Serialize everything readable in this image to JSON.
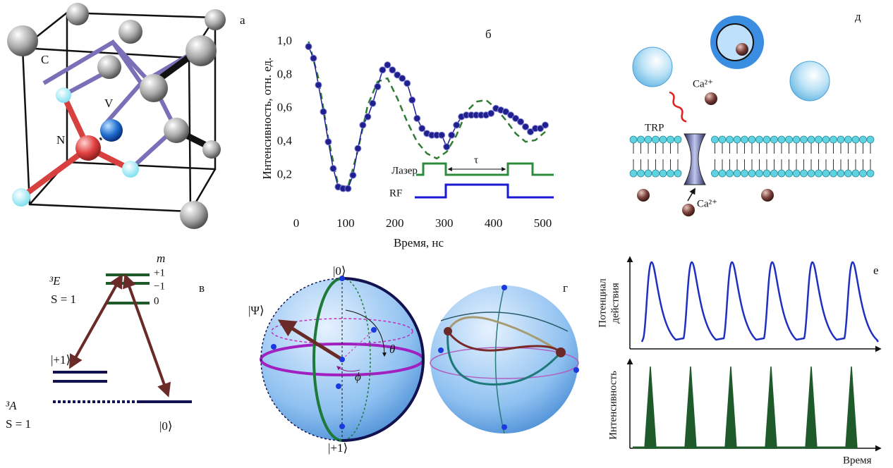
{
  "panel_labels": {
    "a": "а",
    "b": "б",
    "v": "в",
    "g": "г",
    "d": "д",
    "e": "е"
  },
  "lattice": {
    "carbon": "C",
    "vacancy": "V",
    "nitrogen": "N"
  },
  "chart_data": {
    "type": "line",
    "x_label": "Время, нс",
    "y_label": "Интенсивность, отн. ед.",
    "xlim": [
      0,
      525
    ],
    "ylim": [
      0,
      1.08
    ],
    "xticks": [
      0,
      100,
      200,
      300,
      400,
      500
    ],
    "yticks": [
      {
        "value": 0.2,
        "label": "0,2"
      },
      {
        "value": 0.4,
        "label": "0,4"
      },
      {
        "value": 0.6,
        "label": "0,6"
      },
      {
        "value": 0.8,
        "label": "0,8"
      },
      {
        "value": 1.0,
        "label": "1,0"
      }
    ],
    "series": [
      {
        "color": "#1f1f8f",
        "marker": "circle",
        "x": [
          25,
          35,
          45,
          55,
          65,
          75,
          85,
          95,
          105,
          115,
          125,
          135,
          145,
          155,
          165,
          175,
          185,
          195,
          205,
          215,
          225,
          235,
          245,
          255,
          265,
          275,
          285,
          295,
          305,
          315,
          325,
          335,
          345,
          355,
          365,
          375,
          385,
          395,
          405,
          415,
          425,
          435,
          445,
          455,
          465,
          475,
          485,
          495,
          505
        ],
        "values": [
          0.97,
          0.9,
          0.74,
          0.58,
          0.4,
          0.24,
          0.13,
          0.12,
          0.12,
          0.2,
          0.36,
          0.5,
          0.55,
          0.63,
          0.73,
          0.83,
          0.86,
          0.83,
          0.8,
          0.78,
          0.75,
          0.65,
          0.54,
          0.48,
          0.45,
          0.44,
          0.44,
          0.44,
          0.37,
          0.44,
          0.5,
          0.55,
          0.56,
          0.56,
          0.56,
          0.56,
          0.56,
          0.57,
          0.6,
          0.59,
          0.58,
          0.56,
          0.54,
          0.52,
          0.49,
          0.46,
          0.48,
          0.48,
          0.5
        ]
      },
      {
        "color": "#2e7d32",
        "dashed": true,
        "x": [
          25,
          45,
          65,
          85,
          105,
          125,
          145,
          165,
          185,
          205,
          225,
          245,
          265,
          285,
          305,
          325,
          345,
          365,
          385,
          405,
          425,
          445,
          465,
          485,
          505
        ],
        "values": [
          1.0,
          0.78,
          0.42,
          0.14,
          0.13,
          0.35,
          0.62,
          0.76,
          0.78,
          0.66,
          0.52,
          0.4,
          0.33,
          0.3,
          0.34,
          0.44,
          0.58,
          0.64,
          0.65,
          0.6,
          0.53,
          0.45,
          0.4,
          0.41,
          0.46
        ]
      }
    ],
    "annotations": {
      "laser": "Лазер",
      "rf": "RF",
      "tau": "τ"
    }
  },
  "levels": {
    "m": "m",
    "plus1": "+1",
    "minus1": "−1",
    "zero": "0",
    "excited_term": "³E",
    "excited_spin": "S = 1",
    "ground_plus": "|+1⟩",
    "ground_term": "³A",
    "ground_spin": "S = 1",
    "ground_zero": "|0⟩"
  },
  "bloch": {
    "top": "|0⟩",
    "state": "|Ψ⟩",
    "theta": "θ",
    "phi": "ϕ",
    "bottom": "|+1⟩"
  },
  "cell": {
    "ion_top": "Ca²⁺",
    "channel": "TRP",
    "ion_bottom": "Ca²⁺"
  },
  "signals": {
    "potential_line1": "Потенциал",
    "potential_line2": "действия",
    "intensity": "Интенсивность",
    "time": "Время"
  }
}
